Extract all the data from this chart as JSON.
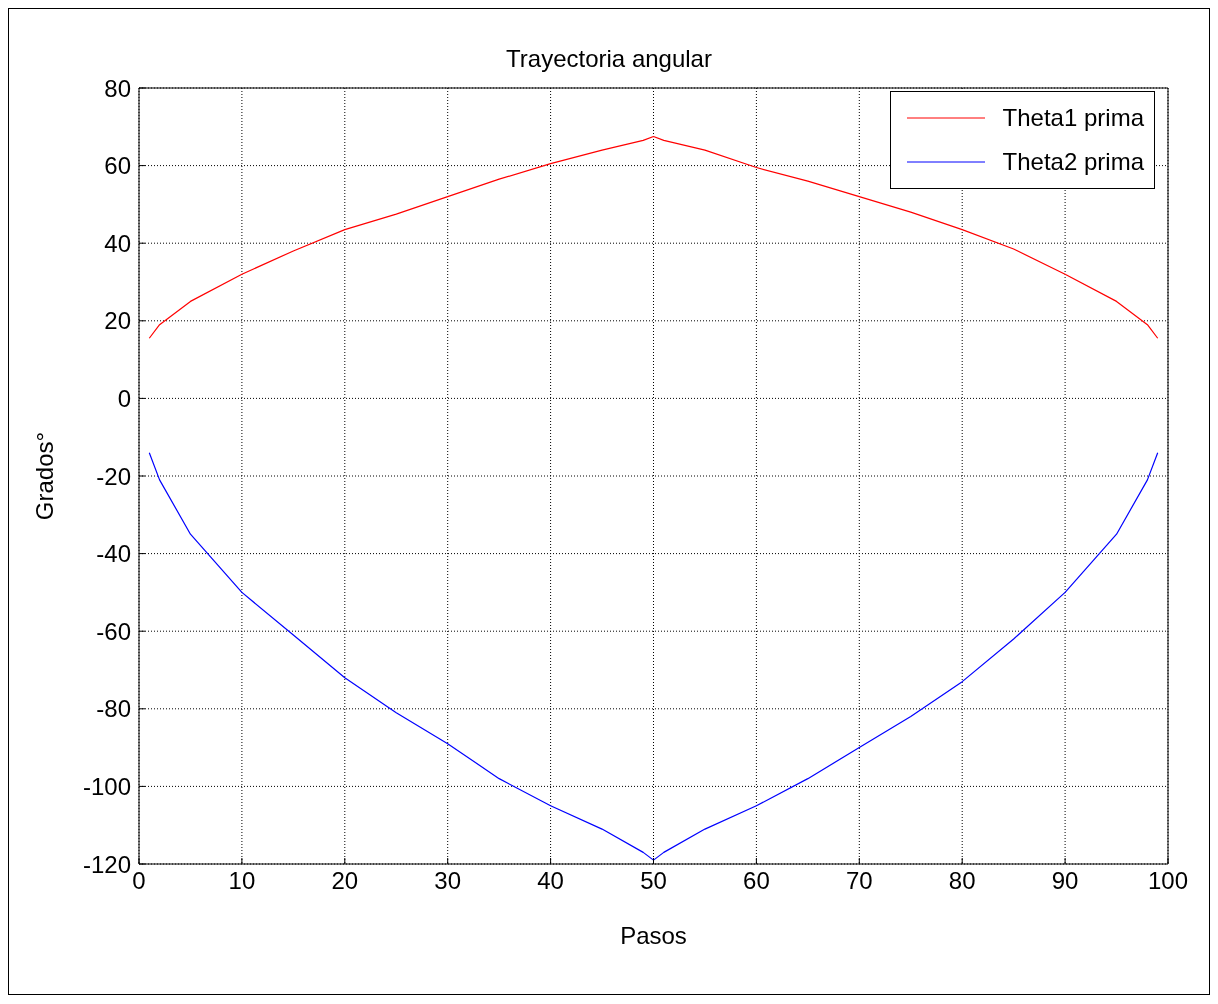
{
  "chart_data": {
    "type": "line",
    "title": "Trayectoria angular",
    "xlabel": "Pasos",
    "ylabel": "Grados°",
    "x": [
      1,
      2,
      5,
      10,
      15,
      20,
      25,
      30,
      35,
      40,
      45,
      49,
      50,
      51,
      55,
      60,
      65,
      70,
      75,
      80,
      85,
      90,
      95,
      98,
      99
    ],
    "series": [
      {
        "name": "Theta1 prima",
        "color": "#ff0000",
        "values": [
          15.5,
          19,
          25,
          32,
          38,
          43.5,
          47.5,
          52,
          56.5,
          60.5,
          64,
          66.5,
          67.5,
          66.5,
          64,
          59.5,
          56,
          52,
          48,
          43.5,
          38.5,
          32,
          25,
          19,
          15.5
        ]
      },
      {
        "name": "Theta2 prima",
        "color": "#0000ff",
        "values": [
          -14,
          -21,
          -35,
          -50,
          -61,
          -72,
          -81,
          -89,
          -98,
          -105,
          -111,
          -117,
          -119,
          -117,
          -111,
          -105,
          -98,
          -90,
          -82,
          -73,
          -62,
          -50,
          -35,
          -21,
          -14
        ]
      }
    ],
    "xlim": [
      0,
      100
    ],
    "xticks": [
      0,
      10,
      20,
      30,
      40,
      50,
      60,
      70,
      80,
      90,
      100
    ],
    "ylim": [
      -120,
      80
    ],
    "yticks": [
      -120,
      -100,
      -80,
      -60,
      -40,
      -20,
      0,
      20,
      40,
      60,
      80
    ],
    "grid": true,
    "legend": "top right",
    "marker": "none",
    "line_style": "solid"
  }
}
